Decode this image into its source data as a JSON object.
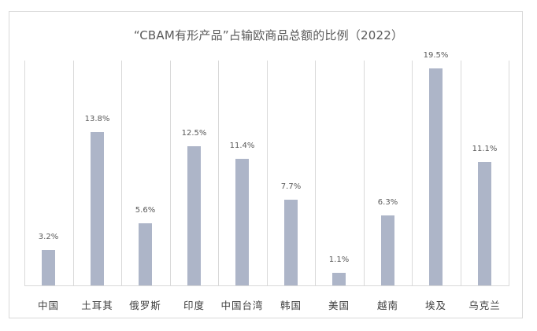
{
  "chart_data": {
    "type": "bar",
    "title": "“CBAM有形产品”占输欧商品总额的比例（2022）",
    "xlabel": "",
    "ylabel": "",
    "ylim": [
      0,
      20.3
    ],
    "grid": "vertical category separators",
    "legend": null,
    "categories": [
      "中国",
      "土耳其",
      "俄罗斯",
      "印度",
      "中国台湾",
      "韩国",
      "美国",
      "越南",
      "埃及",
      "乌克兰"
    ],
    "values": [
      3.2,
      13.8,
      5.6,
      12.5,
      11.4,
      7.7,
      1.1,
      6.3,
      19.5,
      11.1
    ],
    "data_labels": [
      "3.2%",
      "13.8%",
      "5.6%",
      "12.5%",
      "11.4%",
      "7.7%",
      "1.1%",
      "6.3%",
      "19.5%",
      "11.1%"
    ],
    "bar_color": "#ADB5C8"
  },
  "header": {
    "title": "“CBAM有形产品”占输欧商品总额的比例（2022）"
  },
  "bars": [
    {
      "category": "中国",
      "value": 3.2,
      "label": "3.2%"
    },
    {
      "category": "土耳其",
      "value": 13.8,
      "label": "13.8%"
    },
    {
      "category": "俄罗斯",
      "value": 5.6,
      "label": "5.6%"
    },
    {
      "category": "印度",
      "value": 12.5,
      "label": "12.5%"
    },
    {
      "category": "中国台湾",
      "value": 11.4,
      "label": "11.4%"
    },
    {
      "category": "韩国",
      "value": 7.7,
      "label": "7.7%"
    },
    {
      "category": "美国",
      "value": 1.1,
      "label": "1.1%"
    },
    {
      "category": "越南",
      "value": 6.3,
      "label": "6.3%"
    },
    {
      "category": "埃及",
      "value": 19.5,
      "label": "19.5%"
    },
    {
      "category": "乌克兰",
      "value": 11.1,
      "label": "11.1%"
    }
  ],
  "colors": {
    "bar": "#ADB5C8",
    "grid": "#D9D9D9",
    "text": "#595959"
  }
}
